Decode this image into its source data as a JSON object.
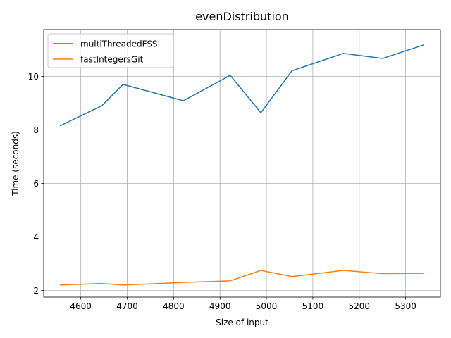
{
  "chart_data": {
    "type": "line",
    "title": "evenDistribution",
    "xlabel": "Size of input",
    "ylabel": "Time (seconds)",
    "xlim": [
      4520,
      5375
    ],
    "ylim": [
      1.75,
      11.75
    ],
    "xticks": [
      4600,
      4700,
      4800,
      4900,
      5000,
      5100,
      5200,
      5300
    ],
    "yticks": [
      2,
      4,
      6,
      8,
      10
    ],
    "grid": true,
    "legend_position": "upper-left",
    "x": [
      4556,
      4645,
      4691,
      4821,
      4922,
      4988,
      5055,
      5166,
      5250,
      5338
    ],
    "series": [
      {
        "name": "multiThreadedFSS",
        "color": "#1f77b4",
        "values": [
          8.16,
          8.9,
          9.7,
          9.09,
          10.04,
          8.64,
          10.21,
          10.86,
          10.67,
          11.17
        ]
      },
      {
        "name": "fastIntegersGit",
        "color": "#ff7f0e",
        "values": [
          2.2,
          2.26,
          2.2,
          2.3,
          2.36,
          2.75,
          2.52,
          2.75,
          2.63,
          2.64
        ]
      }
    ]
  }
}
